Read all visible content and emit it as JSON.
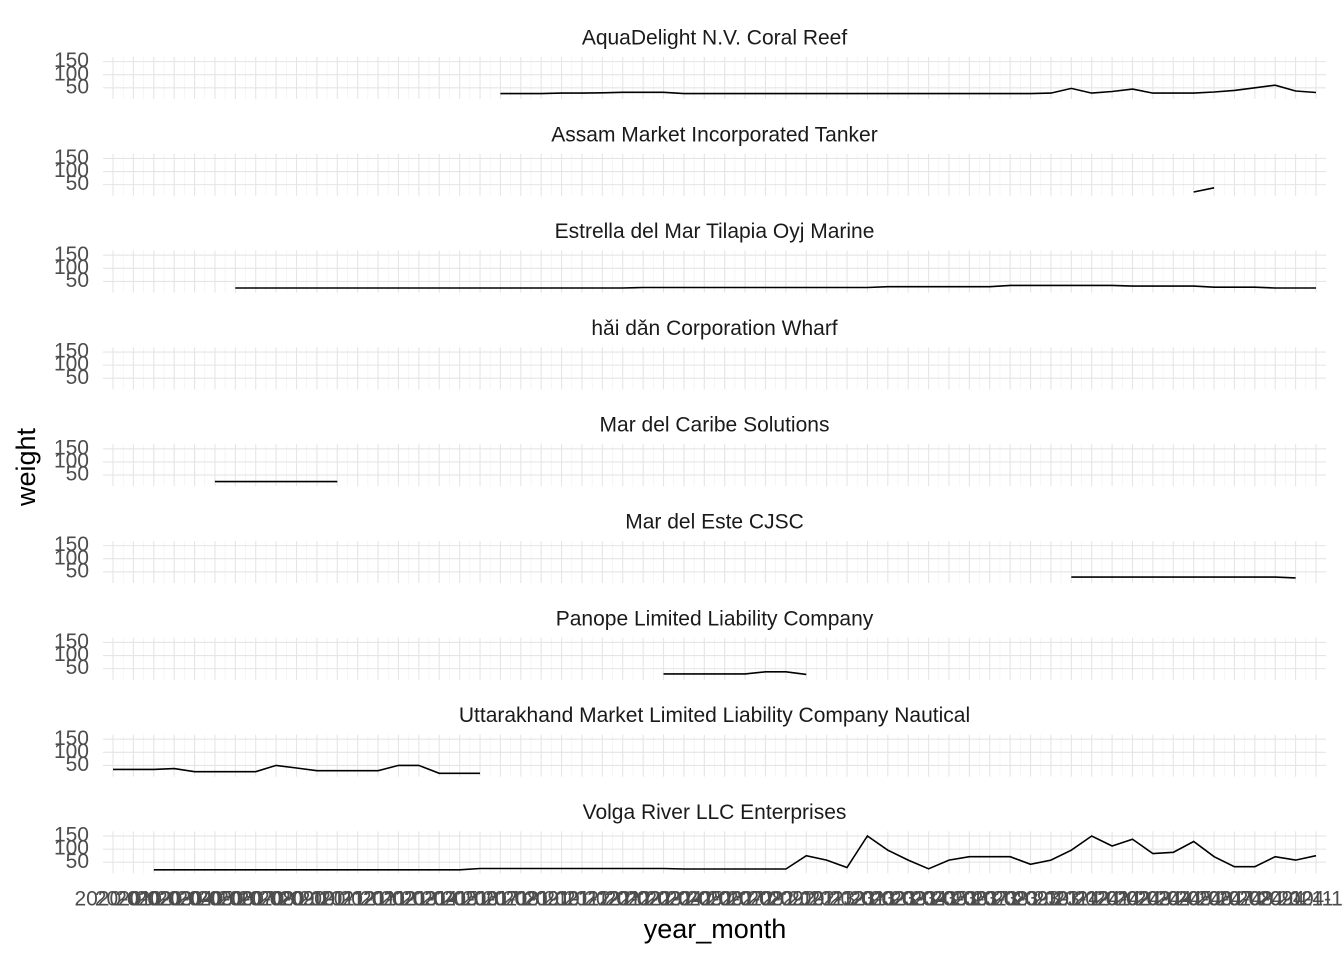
{
  "chart_data": {
    "type": "line",
    "x_label": "year_month",
    "y_label": "weight",
    "color": "#000000",
    "grid": true,
    "categories": [
      "2020-01",
      "2020-02",
      "2020-03",
      "2020-04",
      "2020-05",
      "2020-06",
      "2020-07",
      "2020-08",
      "2020-09",
      "2020-10",
      "2020-11",
      "2020-12",
      "2021-01",
      "2021-02",
      "2021-03",
      "2021-04",
      "2021-05",
      "2021-06",
      "2021-07",
      "2021-08",
      "2021-09",
      "2021-10",
      "2021-11",
      "2021-12",
      "2022-01",
      "2022-02",
      "2022-03",
      "2022-04",
      "2022-05",
      "2022-06",
      "2022-07",
      "2022-08",
      "2022-09",
      "2022-10",
      "2022-11",
      "2022-12",
      "2023-01",
      "2023-02",
      "2023-03",
      "2023-04",
      "2023-05",
      "2023-06",
      "2023-07",
      "2023-08",
      "2023-09",
      "2023-10",
      "2023-11",
      "2023-12",
      "2024-01",
      "2024-02",
      "2024-03",
      "2024-04",
      "2024-05",
      "2024-06",
      "2024-07",
      "2024-08",
      "2024-09",
      "2024-10",
      "2024-11",
      "2024-12"
    ],
    "ylim": [
      15,
      160
    ],
    "yticks": [
      50,
      100,
      150
    ],
    "series": [
      {
        "name": "AquaDelight N.V. Coral Reef",
        "values": [
          null,
          null,
          null,
          null,
          null,
          null,
          null,
          null,
          null,
          null,
          null,
          null,
          null,
          null,
          null,
          null,
          null,
          null,
          null,
          28,
          28,
          28,
          30,
          30,
          31,
          33,
          33,
          33,
          28,
          28,
          28,
          28,
          28,
          28,
          28,
          28,
          28,
          28,
          28,
          28,
          28,
          28,
          28,
          28,
          28,
          28,
          30,
          48,
          30,
          36,
          45,
          30,
          30,
          30,
          34,
          40,
          50,
          60,
          38,
          32
        ]
      },
      {
        "name": "Assam  Market Incorporated Tanker",
        "values": [
          null,
          null,
          null,
          null,
          null,
          null,
          null,
          null,
          null,
          null,
          null,
          null,
          null,
          null,
          null,
          null,
          null,
          null,
          null,
          null,
          null,
          null,
          null,
          null,
          null,
          null,
          null,
          null,
          null,
          null,
          null,
          null,
          null,
          null,
          null,
          null,
          null,
          null,
          null,
          null,
          null,
          null,
          null,
          null,
          null,
          null,
          null,
          null,
          null,
          null,
          null,
          null,
          null,
          22,
          38,
          null,
          null,
          null,
          null,
          null
        ]
      },
      {
        "name": "Estrella del Mar Tilapia Oyj Marine",
        "values": [
          null,
          null,
          null,
          null,
          null,
          null,
          25,
          25,
          25,
          25,
          25,
          25,
          25,
          25,
          25,
          25,
          25,
          25,
          25,
          25,
          25,
          25,
          25,
          25,
          25,
          25,
          27,
          27,
          27,
          27,
          27,
          27,
          27,
          27,
          27,
          27,
          27,
          27,
          30,
          30,
          30,
          30,
          30,
          30,
          35,
          35,
          35,
          35,
          35,
          35,
          32,
          32,
          32,
          32,
          28,
          28,
          28,
          25,
          25,
          25
        ]
      },
      {
        "name": "hǎi dǎn Corporation Wharf",
        "values": [
          null,
          null,
          null,
          null,
          null,
          null,
          null,
          null,
          null,
          null,
          null,
          null,
          null,
          null,
          null,
          null,
          null,
          null,
          null,
          null,
          null,
          null,
          null,
          null,
          null,
          null,
          null,
          null,
          null,
          null,
          null,
          null,
          null,
          null,
          null,
          null,
          null,
          null,
          null,
          null,
          null,
          null,
          null,
          null,
          null,
          null,
          null,
          null,
          null,
          null,
          null,
          null,
          null,
          null,
          null,
          null,
          null,
          null,
          null,
          null
        ]
      },
      {
        "name": "Mar del Caribe Solutions",
        "values": [
          null,
          null,
          null,
          null,
          null,
          25,
          25,
          25,
          25,
          25,
          25,
          25,
          null,
          null,
          null,
          null,
          null,
          null,
          null,
          null,
          null,
          null,
          null,
          null,
          null,
          null,
          null,
          null,
          null,
          null,
          null,
          null,
          null,
          null,
          null,
          null,
          null,
          null,
          null,
          null,
          null,
          null,
          null,
          null,
          null,
          null,
          null,
          null,
          null,
          null,
          null,
          null,
          null,
          null,
          null,
          null,
          null,
          null,
          null,
          null
        ]
      },
      {
        "name": "Mar del Este CJSC",
        "values": [
          null,
          null,
          null,
          null,
          null,
          null,
          null,
          null,
          null,
          null,
          null,
          null,
          null,
          null,
          null,
          null,
          null,
          null,
          null,
          null,
          null,
          null,
          null,
          null,
          null,
          null,
          null,
          null,
          null,
          null,
          null,
          null,
          null,
          null,
          null,
          null,
          null,
          null,
          null,
          null,
          null,
          null,
          null,
          null,
          null,
          null,
          null,
          30,
          30,
          30,
          30,
          30,
          30,
          30,
          30,
          30,
          30,
          30,
          27,
          null
        ]
      },
      {
        "name": "Panope Limited Liability Company",
        "values": [
          null,
          null,
          null,
          null,
          null,
          null,
          null,
          null,
          null,
          null,
          null,
          null,
          null,
          null,
          null,
          null,
          null,
          null,
          null,
          null,
          null,
          null,
          null,
          null,
          null,
          null,
          null,
          30,
          30,
          30,
          30,
          30,
          38,
          38,
          28,
          null,
          null,
          null,
          null,
          null,
          null,
          null,
          null,
          null,
          null,
          null,
          null,
          null,
          null,
          null,
          null,
          null,
          null,
          null,
          null,
          null,
          null,
          null,
          null,
          null
        ]
      },
      {
        "name": "Uttarakhand  Market Limited Liability Company Nautical",
        "values": [
          35,
          35,
          35,
          38,
          26,
          26,
          26,
          26,
          50,
          40,
          30,
          30,
          30,
          30,
          50,
          50,
          20,
          20,
          20,
          null,
          null,
          null,
          null,
          null,
          null,
          null,
          null,
          null,
          null,
          null,
          null,
          null,
          null,
          null,
          null,
          null,
          null,
          null,
          null,
          null,
          null,
          null,
          null,
          null,
          null,
          null,
          null,
          null,
          null,
          null,
          null,
          null,
          null,
          null,
          null,
          null,
          null,
          null,
          null,
          null
        ]
      },
      {
        "name": "Volga River LLC Enterprises",
        "values": [
          null,
          null,
          21,
          21,
          21,
          21,
          21,
          21,
          21,
          21,
          21,
          21,
          21,
          21,
          21,
          21,
          21,
          21,
          26,
          26,
          26,
          26,
          26,
          26,
          26,
          26,
          26,
          26,
          24,
          24,
          24,
          24,
          24,
          24,
          75,
          58,
          30,
          150,
          96,
          58,
          25,
          58,
          71,
          71,
          71,
          42,
          58,
          96,
          150,
          112,
          138,
          83,
          88,
          129,
          71,
          33,
          33,
          71,
          58,
          75
        ]
      }
    ]
  }
}
